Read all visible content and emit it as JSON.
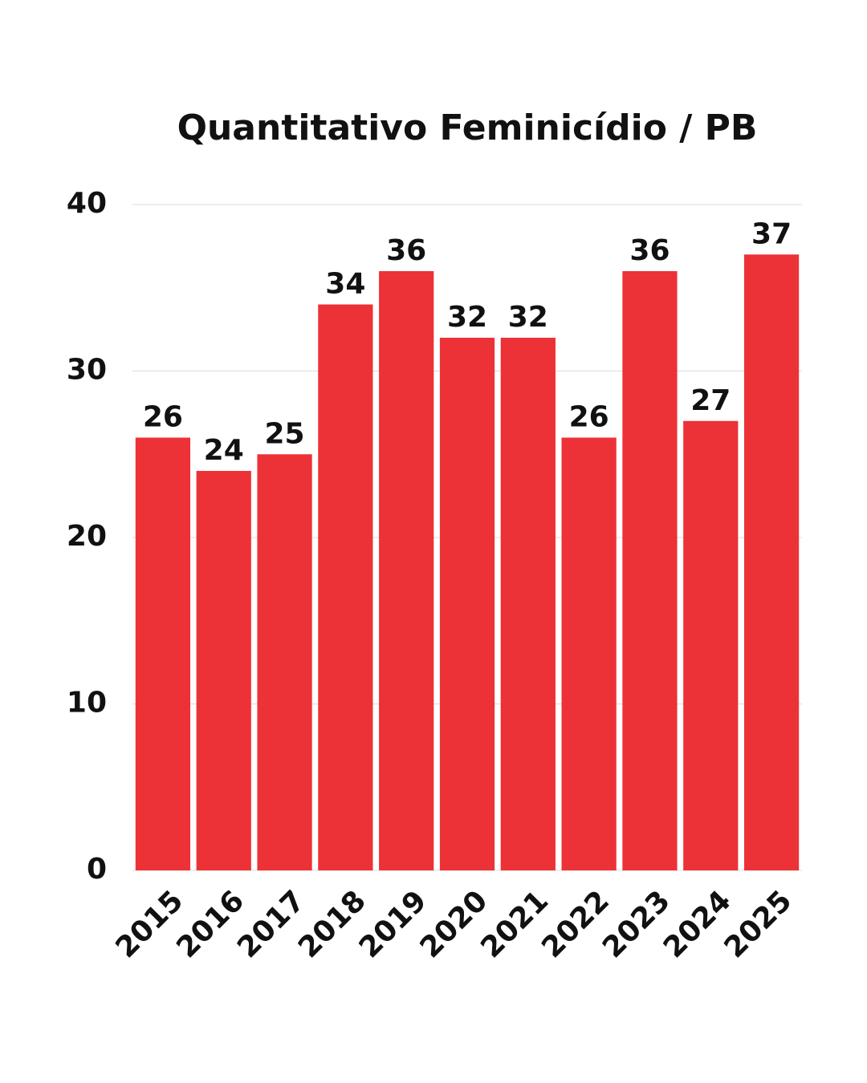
{
  "chart_data": {
    "type": "bar",
    "title": "Quantitativo Feminicídio / PB",
    "categories": [
      "2015",
      "2016",
      "2017",
      "2018",
      "2019",
      "2020",
      "2021",
      "2022",
      "2023",
      "2024",
      "2025"
    ],
    "values": [
      26,
      24,
      25,
      34,
      36,
      32,
      32,
      26,
      36,
      27,
      37
    ],
    "color": "#ec3237",
    "ylim": [
      0,
      40
    ],
    "yticks": [
      0,
      10,
      20,
      30,
      40
    ],
    "grid": true
  }
}
